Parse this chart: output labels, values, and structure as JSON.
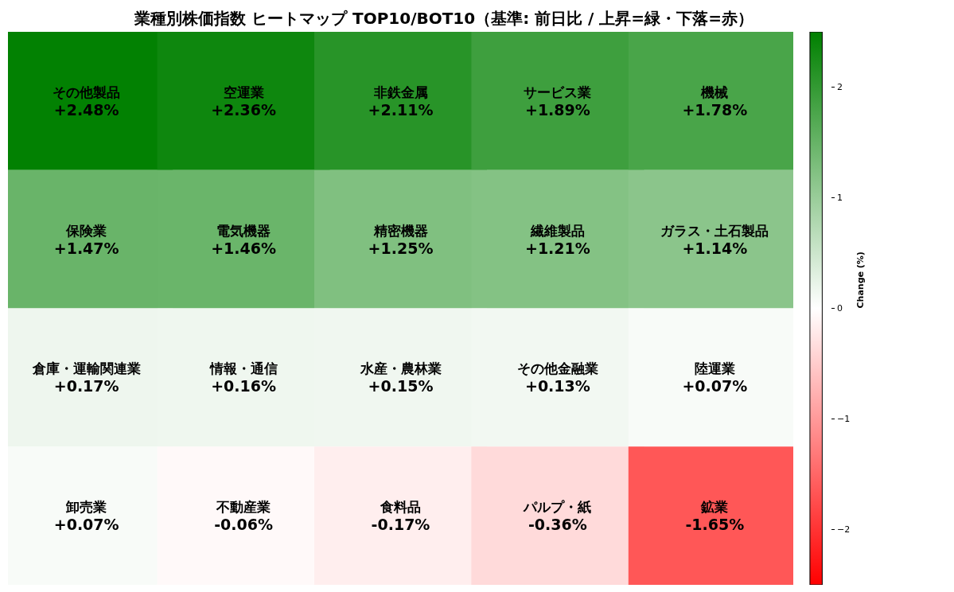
{
  "chart_data": {
    "type": "heatmap",
    "title": "業種別株価指数 ヒートマップ TOP10/BOT10（基準: 前日比 / 上昇=緑・下落=赤）",
    "categories": [
      null,
      null,
      null,
      null,
      null
    ],
    "y_categories": [
      null,
      null,
      null,
      null
    ],
    "cells": [
      [
        2.48,
        2.36,
        2.11,
        1.89,
        1.78
      ],
      [
        1.47,
        1.46,
        1.25,
        1.21,
        1.14
      ],
      [
        0.17,
        0.16,
        0.15,
        0.13,
        0.07
      ],
      [
        0.07,
        -0.06,
        -0.17,
        -0.36,
        -1.65
      ]
    ],
    "cell_labels": [
      [
        "その他製品\n+2.48%",
        "空運業\n+2.36%",
        "非鉄金属\n+2.11%",
        "サービス業\n+1.89%",
        "機械\n+1.78%"
      ],
      [
        "保険業\n+1.47%",
        "電気機器\n+1.46%",
        "精密機器\n+1.25%",
        "繊維製品\n+1.21%",
        "ガラス・土石製品\n+1.14%"
      ],
      [
        "倉庫・運輸関連業\n+0.17%",
        "情報・通信\n+0.16%",
        "水産・農林業\n+0.15%",
        "その他金融業\n+0.13%",
        "陸運業\n+0.07%"
      ],
      [
        "卸売業\n+0.07%",
        "不動産業\n-0.06%",
        "食料品\n-0.17%",
        "パルプ・紙\n-0.36%",
        "鉱業\n-1.65%"
      ]
    ],
    "clabel": "Change (%)",
    "clim": [
      -2.5,
      2.5
    ],
    "cticks": [
      {
        "value": -2,
        "label": "−2"
      },
      {
        "value": -1,
        "label": "−1"
      },
      {
        "value": 0,
        "label": "0"
      },
      {
        "value": 1,
        "label": "1"
      },
      {
        "value": 2,
        "label": "2"
      }
    ]
  }
}
